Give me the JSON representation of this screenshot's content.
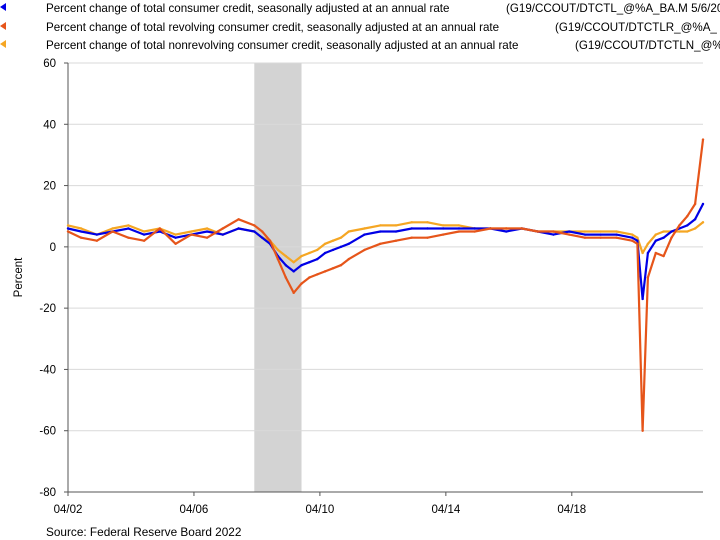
{
  "legend": [
    {
      "label": "Percent change of total consumer credit, seasonally adjusted at an annual rate",
      "code": "(G19/CCOUT/DTCTL_@%A_BA.M 5/6/20",
      "color": "#0000e6"
    },
    {
      "label": "Percent change of total revolving consumer credit, seasonally adjusted at an annual rate",
      "code": "(G19/CCOUT/DTCTLR_@%A_",
      "color": "#e6551a"
    },
    {
      "label": "Percent change of total nonrevolving consumer credit, seasonally adjusted at an annual rate",
      "code": "(G19/CCOUT/DTCTLN_@%",
      "color": "#f5a623"
    }
  ],
  "source": "Source: Federal Reserve Board 2022",
  "chart_data": {
    "type": "line",
    "ylabel": "Percent",
    "xlabel": "",
    "ylim": [
      -80,
      60
    ],
    "yticks": [
      60,
      40,
      20,
      0,
      -20,
      -40,
      -60,
      -80
    ],
    "xlim": [
      "2002-01",
      "2022-03"
    ],
    "xticks": [
      {
        "date": "2002-01",
        "label": "04/02"
      },
      {
        "date": "2006-01",
        "label": "04/06"
      },
      {
        "date": "2010-01",
        "label": "04/10"
      },
      {
        "date": "2014-01",
        "label": "04/14"
      },
      {
        "date": "2018-01",
        "label": "04/18"
      }
    ],
    "grid": "horizontal",
    "recession": {
      "start": "2007-12",
      "end": "2009-06"
    },
    "series": [
      {
        "name": "Percent change of total consumer credit, seasonally adjusted at an annual rate",
        "color": "#0000e6",
        "points": [
          [
            "2002-01",
            6
          ],
          [
            "2002-06",
            5
          ],
          [
            "2002-12",
            4
          ],
          [
            "2003-06",
            5
          ],
          [
            "2003-12",
            6
          ],
          [
            "2004-06",
            4
          ],
          [
            "2004-12",
            5
          ],
          [
            "2005-06",
            3
          ],
          [
            "2005-12",
            4
          ],
          [
            "2006-06",
            5
          ],
          [
            "2006-12",
            4
          ],
          [
            "2007-06",
            6
          ],
          [
            "2007-12",
            5
          ],
          [
            "2008-03",
            3
          ],
          [
            "2008-06",
            1
          ],
          [
            "2008-09",
            -3
          ],
          [
            "2008-12",
            -6
          ],
          [
            "2009-03",
            -8
          ],
          [
            "2009-06",
            -6
          ],
          [
            "2009-09",
            -5
          ],
          [
            "2009-12",
            -4
          ],
          [
            "2010-03",
            -2
          ],
          [
            "2010-06",
            -1
          ],
          [
            "2010-09",
            0
          ],
          [
            "2010-12",
            1
          ],
          [
            "2011-06",
            4
          ],
          [
            "2011-12",
            5
          ],
          [
            "2012-06",
            5
          ],
          [
            "2012-12",
            6
          ],
          [
            "2013-06",
            6
          ],
          [
            "2013-12",
            6
          ],
          [
            "2014-06",
            6
          ],
          [
            "2014-12",
            6
          ],
          [
            "2015-06",
            6
          ],
          [
            "2015-12",
            5
          ],
          [
            "2016-06",
            6
          ],
          [
            "2016-12",
            5
          ],
          [
            "2017-06",
            4
          ],
          [
            "2017-12",
            5
          ],
          [
            "2018-06",
            4
          ],
          [
            "2018-12",
            4
          ],
          [
            "2019-06",
            4
          ],
          [
            "2019-12",
            3
          ],
          [
            "2020-02",
            2
          ],
          [
            "2020-04",
            -17
          ],
          [
            "2020-06",
            -2
          ],
          [
            "2020-09",
            2
          ],
          [
            "2020-12",
            3
          ],
          [
            "2021-03",
            5
          ],
          [
            "2021-06",
            6
          ],
          [
            "2021-09",
            7
          ],
          [
            "2021-12",
            9
          ],
          [
            "2022-03",
            14
          ]
        ]
      },
      {
        "name": "Percent change of total revolving consumer credit, seasonally adjusted at an annual rate",
        "color": "#e6551a",
        "points": [
          [
            "2002-01",
            5
          ],
          [
            "2002-06",
            3
          ],
          [
            "2002-12",
            2
          ],
          [
            "2003-06",
            5
          ],
          [
            "2003-12",
            3
          ],
          [
            "2004-06",
            2
          ],
          [
            "2004-12",
            6
          ],
          [
            "2005-06",
            1
          ],
          [
            "2005-12",
            4
          ],
          [
            "2006-06",
            3
          ],
          [
            "2006-12",
            6
          ],
          [
            "2007-06",
            9
          ],
          [
            "2007-12",
            7
          ],
          [
            "2008-03",
            5
          ],
          [
            "2008-06",
            2
          ],
          [
            "2008-09",
            -4
          ],
          [
            "2008-12",
            -10
          ],
          [
            "2009-03",
            -15
          ],
          [
            "2009-06",
            -12
          ],
          [
            "2009-09",
            -10
          ],
          [
            "2009-12",
            -9
          ],
          [
            "2010-03",
            -8
          ],
          [
            "2010-06",
            -7
          ],
          [
            "2010-09",
            -6
          ],
          [
            "2010-12",
            -4
          ],
          [
            "2011-06",
            -1
          ],
          [
            "2011-12",
            1
          ],
          [
            "2012-06",
            2
          ],
          [
            "2012-12",
            3
          ],
          [
            "2013-06",
            3
          ],
          [
            "2013-12",
            4
          ],
          [
            "2014-06",
            5
          ],
          [
            "2014-12",
            5
          ],
          [
            "2015-06",
            6
          ],
          [
            "2015-12",
            6
          ],
          [
            "2016-06",
            6
          ],
          [
            "2016-12",
            5
          ],
          [
            "2017-06",
            5
          ],
          [
            "2017-12",
            4
          ],
          [
            "2018-06",
            3
          ],
          [
            "2018-12",
            3
          ],
          [
            "2019-06",
            3
          ],
          [
            "2019-12",
            2
          ],
          [
            "2020-02",
            1
          ],
          [
            "2020-04",
            -60
          ],
          [
            "2020-06",
            -10
          ],
          [
            "2020-09",
            -2
          ],
          [
            "2020-12",
            -3
          ],
          [
            "2021-03",
            3
          ],
          [
            "2021-06",
            7
          ],
          [
            "2021-09",
            10
          ],
          [
            "2021-12",
            14
          ],
          [
            "2022-03",
            35
          ]
        ]
      },
      {
        "name": "Percent change of total nonrevolving consumer credit, seasonally adjusted at an annual rate",
        "color": "#f5a623",
        "points": [
          [
            "2002-01",
            7
          ],
          [
            "2002-06",
            6
          ],
          [
            "2002-12",
            4
          ],
          [
            "2003-06",
            6
          ],
          [
            "2003-12",
            7
          ],
          [
            "2004-06",
            5
          ],
          [
            "2004-12",
            6
          ],
          [
            "2005-06",
            4
          ],
          [
            "2005-12",
            5
          ],
          [
            "2006-06",
            6
          ],
          [
            "2006-12",
            4
          ],
          [
            "2007-06",
            6
          ],
          [
            "2007-12",
            5
          ],
          [
            "2008-03",
            3
          ],
          [
            "2008-06",
            2
          ],
          [
            "2008-09",
            -1
          ],
          [
            "2008-12",
            -3
          ],
          [
            "2009-03",
            -5
          ],
          [
            "2009-06",
            -3
          ],
          [
            "2009-09",
            -2
          ],
          [
            "2009-12",
            -1
          ],
          [
            "2010-03",
            1
          ],
          [
            "2010-06",
            2
          ],
          [
            "2010-09",
            3
          ],
          [
            "2010-12",
            5
          ],
          [
            "2011-06",
            6
          ],
          [
            "2011-12",
            7
          ],
          [
            "2012-06",
            7
          ],
          [
            "2012-12",
            8
          ],
          [
            "2013-06",
            8
          ],
          [
            "2013-12",
            7
          ],
          [
            "2014-06",
            7
          ],
          [
            "2014-12",
            6
          ],
          [
            "2015-06",
            6
          ],
          [
            "2015-12",
            6
          ],
          [
            "2016-06",
            6
          ],
          [
            "2016-12",
            5
          ],
          [
            "2017-06",
            5
          ],
          [
            "2017-12",
            5
          ],
          [
            "2018-06",
            5
          ],
          [
            "2018-12",
            5
          ],
          [
            "2019-06",
            5
          ],
          [
            "2019-12",
            4
          ],
          [
            "2020-02",
            3
          ],
          [
            "2020-04",
            -2
          ],
          [
            "2020-06",
            1
          ],
          [
            "2020-09",
            4
          ],
          [
            "2020-12",
            5
          ],
          [
            "2021-03",
            5
          ],
          [
            "2021-06",
            5
          ],
          [
            "2021-09",
            5
          ],
          [
            "2021-12",
            6
          ],
          [
            "2022-03",
            8
          ]
        ]
      }
    ]
  }
}
